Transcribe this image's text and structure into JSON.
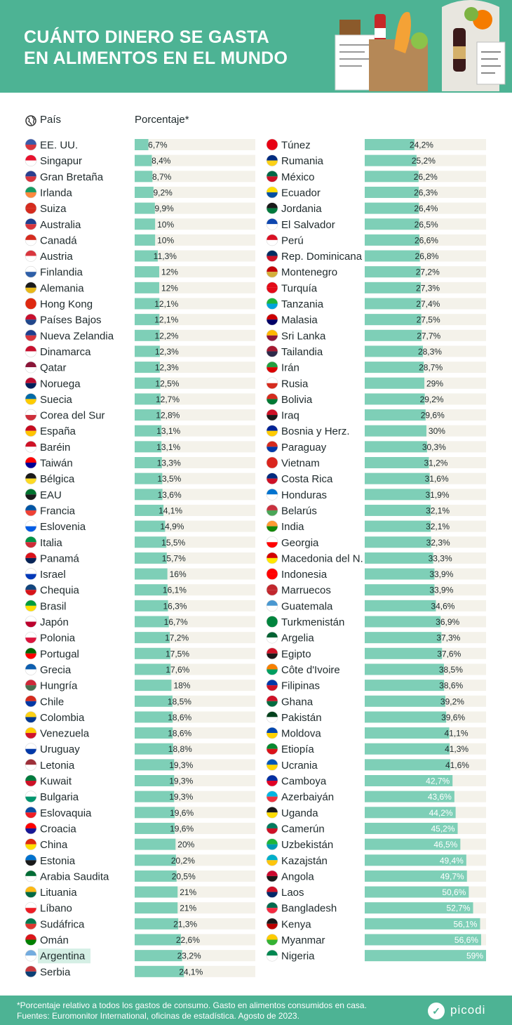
{
  "title": "CUÁNTO DINERO SE GASTA\nEN ALIMENTOS EN EL MUNDO",
  "header_left": "País",
  "header_right": "Porcentaje*",
  "footnote": "*Porcentaje relativo a todos los gastos de consumo. Gasto en alimentos consumidos en casa.\n Fuentes: Euromonitor International, oficinas de estadística. Agosto de 2023.",
  "brand": "picodi",
  "colors": {
    "header": "#4db394",
    "bar": "#7ecfb7",
    "track": "#f4f2ea",
    "highlight": "#d5efe5"
  },
  "highlight_country": "Argentina",
  "icons": {
    "country_column": "globe-icon",
    "brand": "picodi-logo-icon"
  },
  "chart_data": {
    "type": "bar",
    "orientation": "horizontal",
    "xlim": [
      0,
      59
    ],
    "columns": [
      {
        "countries": [
          "EE. UU.",
          "Singapur",
          "Gran Bretaña",
          "Irlanda",
          "Suiza",
          "Australia",
          "Canadá",
          "Austria",
          "Finlandia",
          "Alemania",
          "Hong Kong",
          "Países Bajos",
          "Nueva Zelandia",
          "Dinamarca",
          "Qatar",
          "Noruega",
          "Suecia",
          "Corea del Sur",
          "España",
          "Baréin",
          "Taiwán",
          "Bélgica",
          "EAU",
          "Francia",
          "Eslovenia",
          "Italia",
          "Panamá",
          "Israel",
          "Chequia",
          "Brasil",
          "Japón",
          "Polonia",
          "Portugal",
          "Grecia",
          "Hungría",
          "Chile",
          "Colombia",
          "Venezuela",
          "Uruguay",
          "Letonia",
          "Kuwait",
          "Bulgaria",
          "Eslovaquia",
          "Croacia",
          "China",
          "Estonia",
          "Arabia Saudita",
          "Lituania",
          "Líbano",
          "Sudáfrica",
          "Omán",
          "Argentina",
          "Serbia"
        ],
        "values": [
          6.7,
          8.4,
          8.7,
          9.2,
          9.9,
          10,
          10,
          11.3,
          12,
          12,
          12.1,
          12.1,
          12.2,
          12.3,
          12.3,
          12.5,
          12.7,
          12.8,
          13.1,
          13.1,
          13.3,
          13.5,
          13.6,
          14.1,
          14.9,
          15.5,
          15.7,
          16,
          16.1,
          16.3,
          16.7,
          17.2,
          17.5,
          17.6,
          18,
          18.5,
          18.6,
          18.6,
          18.8,
          19.3,
          19.3,
          19.3,
          19.6,
          19.6,
          20,
          20.2,
          20.5,
          21,
          21,
          21.3,
          22.6,
          23.2,
          24.1
        ],
        "labels": [
          "6,7%",
          "8,4%",
          "8,7%",
          "9,2%",
          "9,9%",
          "10%",
          "10%",
          "11,3%",
          "12%",
          "12%",
          "12,1%",
          "12,1%",
          "12,2%",
          "12,3%",
          "12,3%",
          "12,5%",
          "12,7%",
          "12,8%",
          "13,1%",
          "13,1%",
          "13,3%",
          "13,5%",
          "13,6%",
          "14,1%",
          "14,9%",
          "15,5%",
          "15,7%",
          "16%",
          "16,1%",
          "16,3%",
          "16,7%",
          "17,2%",
          "17,5%",
          "17,6%",
          "18%",
          "18,5%",
          "18,6%",
          "18,6%",
          "18,8%",
          "19,3%",
          "19,3%",
          "19,3%",
          "19,6%",
          "19,6%",
          "20%",
          "20,2%",
          "20,5%",
          "21%",
          "21%",
          "21,3%",
          "22,6%",
          "23,2%",
          "24,1%"
        ],
        "flag_colors": [
          [
            "#3c5aa8",
            "#d9363e"
          ],
          [
            "#e8112d",
            "#ffffff"
          ],
          [
            "#2a3f8f",
            "#d9363e"
          ],
          [
            "#169b62",
            "#ff883e"
          ],
          [
            "#d52b1e",
            "#d52b1e"
          ],
          [
            "#1f3f8f",
            "#d9363e"
          ],
          [
            "#d52b1e",
            "#ffffff"
          ],
          [
            "#d9363e",
            "#ffffff"
          ],
          [
            "#ffffff",
            "#2e5fa8"
          ],
          [
            "#1a1a1a",
            "#e8b91a"
          ],
          [
            "#de2910",
            "#de2910"
          ],
          [
            "#c8102e",
            "#21468b"
          ],
          [
            "#1f3f8f",
            "#d9363e"
          ],
          [
            "#c8102e",
            "#ffffff"
          ],
          [
            "#8a1538",
            "#ffffff"
          ],
          [
            "#ba0c2f",
            "#00205b"
          ],
          [
            "#006aa7",
            "#fecc00"
          ],
          [
            "#ffffff",
            "#cd2e3a"
          ],
          [
            "#c60b1e",
            "#ffc400"
          ],
          [
            "#ce1126",
            "#ffffff"
          ],
          [
            "#fe0000",
            "#000095"
          ],
          [
            "#1a1a1a",
            "#fdda24"
          ],
          [
            "#00732f",
            "#1a1a1a"
          ],
          [
            "#0055a4",
            "#ef4135"
          ],
          [
            "#ffffff",
            "#005ce5"
          ],
          [
            "#009246",
            "#ce2b37"
          ],
          [
            "#da121a",
            "#072357"
          ],
          [
            "#ffffff",
            "#0038b8"
          ],
          [
            "#11457e",
            "#d7141a"
          ],
          [
            "#009c3b",
            "#ffdf00"
          ],
          [
            "#ffffff",
            "#bc002d"
          ],
          [
            "#ffffff",
            "#dc143c"
          ],
          [
            "#006600",
            "#ff0000"
          ],
          [
            "#0d5eaf",
            "#ffffff"
          ],
          [
            "#ce2939",
            "#477050"
          ],
          [
            "#d52b1e",
            "#0039a6"
          ],
          [
            "#fcd116",
            "#003893"
          ],
          [
            "#ffcc00",
            "#cf142b"
          ],
          [
            "#ffffff",
            "#0038a8"
          ],
          [
            "#9e3039",
            "#ffffff"
          ],
          [
            "#007a3d",
            "#ce1126"
          ],
          [
            "#ffffff",
            "#00966e"
          ],
          [
            "#0b4ea2",
            "#ee1c25"
          ],
          [
            "#ff0000",
            "#171796"
          ],
          [
            "#de2910",
            "#ffde00"
          ],
          [
            "#0072ce",
            "#1a1a1a"
          ],
          [
            "#006c35",
            "#ffffff"
          ],
          [
            "#fdb913",
            "#006a44"
          ],
          [
            "#ffffff",
            "#ed1c24"
          ],
          [
            "#007a4d",
            "#de3831"
          ],
          [
            "#db161b",
            "#008000"
          ],
          [
            "#74acdf",
            "#ffffff"
          ],
          [
            "#c6363c",
            "#0c4076"
          ]
        ]
      },
      {
        "countries": [
          "Túnez",
          "Rumania",
          "México",
          "Ecuador",
          "Jordania",
          "El Salvador",
          "Perú",
          "Rep. Dominicana",
          "Montenegro",
          "Turquía",
          "Tanzania",
          "Malasia",
          "Sri Lanka",
          "Tailandia",
          "Irán",
          "Rusia",
          "Bolivia",
          "Iraq",
          "Bosnia y Herz.",
          "Paraguay",
          "Vietnam",
          "Costa Rica",
          "Honduras",
          "Belarús",
          "India",
          "Georgia",
          "Macedonia del N.",
          "Indonesia",
          "Marruecos",
          "Guatemala",
          "Turkmenistán",
          "Argelia",
          "Egipto",
          "Côte d'Ivoire",
          "Filipinas",
          "Ghana",
          "Pakistán",
          "Moldova",
          "Etiopía",
          "Ucrania",
          "Camboya",
          "Azerbaiyán",
          "Uganda",
          "Camerún",
          "Uzbekistán",
          "Kazajstán",
          "Angola",
          "Laos",
          "Bangladesh",
          "Kenya",
          "Myanmar",
          "Nigeria"
        ],
        "values": [
          24.2,
          25.2,
          26.2,
          26.3,
          26.4,
          26.5,
          26.6,
          26.8,
          27.2,
          27.3,
          27.4,
          27.5,
          27.7,
          28.3,
          28.7,
          29,
          29.2,
          29.6,
          30,
          30.3,
          31.2,
          31.6,
          31.9,
          32.1,
          32.1,
          32.3,
          33.3,
          33.9,
          33.9,
          34.6,
          36.9,
          37.3,
          37.6,
          38.5,
          38.6,
          39.2,
          39.6,
          41.1,
          41.3,
          41.6,
          42.7,
          43.6,
          44.2,
          45.2,
          46.5,
          49.4,
          49.7,
          50.6,
          52.7,
          56.1,
          56.6,
          59
        ],
        "labels": [
          "24,2%",
          "25,2%",
          "26,2%",
          "26,3%",
          "26,4%",
          "26,5%",
          "26,6%",
          "26,8%",
          "27,2%",
          "27,3%",
          "27,4%",
          "27,5%",
          "27,7%",
          "28,3%",
          "28,7%",
          "29%",
          "29,2%",
          "29,6%",
          "30%",
          "30,3%",
          "31,2%",
          "31,6%",
          "31,9%",
          "32,1%",
          "32,1%",
          "32,3%",
          "33,3%",
          "33,9%",
          "33,9%",
          "34,6%",
          "36,9%",
          "37,3%",
          "37,6%",
          "38,5%",
          "38,6%",
          "39,2%",
          "39,6%",
          "41,1%",
          "41,3%",
          "41,6%",
          "42,7%",
          "43,6%",
          "44,2%",
          "45,2%",
          "46,5%",
          "49,4%",
          "49,7%",
          "50,6%",
          "52,7%",
          "56,1%",
          "56,6%",
          "59%"
        ],
        "flag_colors": [
          [
            "#e70013",
            "#e70013"
          ],
          [
            "#002b7f",
            "#fcd116"
          ],
          [
            "#006847",
            "#ce1126"
          ],
          [
            "#ffdd00",
            "#034ea2"
          ],
          [
            "#1a1a1a",
            "#007a3d"
          ],
          [
            "#0f47af",
            "#ffffff"
          ],
          [
            "#d91023",
            "#ffffff"
          ],
          [
            "#002d62",
            "#ce1126"
          ],
          [
            "#c40308",
            "#d4af3a"
          ],
          [
            "#e30a17",
            "#e30a17"
          ],
          [
            "#1eb53a",
            "#00a3dd"
          ],
          [
            "#cc0001",
            "#010066"
          ],
          [
            "#ffb700",
            "#8d153a"
          ],
          [
            "#a51931",
            "#2d2a4a"
          ],
          [
            "#239f40",
            "#da0000"
          ],
          [
            "#ffffff",
            "#d52b1e"
          ],
          [
            "#d52b1e",
            "#007934"
          ],
          [
            "#ce1126",
            "#1a1a1a"
          ],
          [
            "#002395",
            "#fecb00"
          ],
          [
            "#d52b1e",
            "#0038a8"
          ],
          [
            "#da251d",
            "#da251d"
          ],
          [
            "#002b7f",
            "#ce1126"
          ],
          [
            "#0073cf",
            "#ffffff"
          ],
          [
            "#c8313e",
            "#4aa657"
          ],
          [
            "#ff9933",
            "#138808"
          ],
          [
            "#ffffff",
            "#ff0000"
          ],
          [
            "#d20000",
            "#ffe600"
          ],
          [
            "#ff0000",
            "#ff0000"
          ],
          [
            "#c1272d",
            "#c1272d"
          ],
          [
            "#4997d0",
            "#ffffff"
          ],
          [
            "#00843d",
            "#00843d"
          ],
          [
            "#006233",
            "#ffffff"
          ],
          [
            "#ce1126",
            "#1a1a1a"
          ],
          [
            "#f77f00",
            "#009e60"
          ],
          [
            "#0038a8",
            "#ce1126"
          ],
          [
            "#ce1126",
            "#006b3f"
          ],
          [
            "#01411c",
            "#ffffff"
          ],
          [
            "#0046ae",
            "#ffd200"
          ],
          [
            "#078930",
            "#da121a"
          ],
          [
            "#0057b7",
            "#ffd700"
          ],
          [
            "#032ea1",
            "#e00025"
          ],
          [
            "#00b5e2",
            "#ef3340"
          ],
          [
            "#1a1a1a",
            "#fcdc04"
          ],
          [
            "#007a5e",
            "#ce1126"
          ],
          [
            "#1eb53a",
            "#0099b5"
          ],
          [
            "#00afca",
            "#fec50c"
          ],
          [
            "#cc092f",
            "#1a1a1a"
          ],
          [
            "#ce1126",
            "#002868"
          ],
          [
            "#006a4e",
            "#f42a41"
          ],
          [
            "#1a1a1a",
            "#bb0000"
          ],
          [
            "#fecb00",
            "#34b233"
          ],
          [
            "#008751",
            "#ffffff"
          ]
        ]
      }
    ]
  }
}
